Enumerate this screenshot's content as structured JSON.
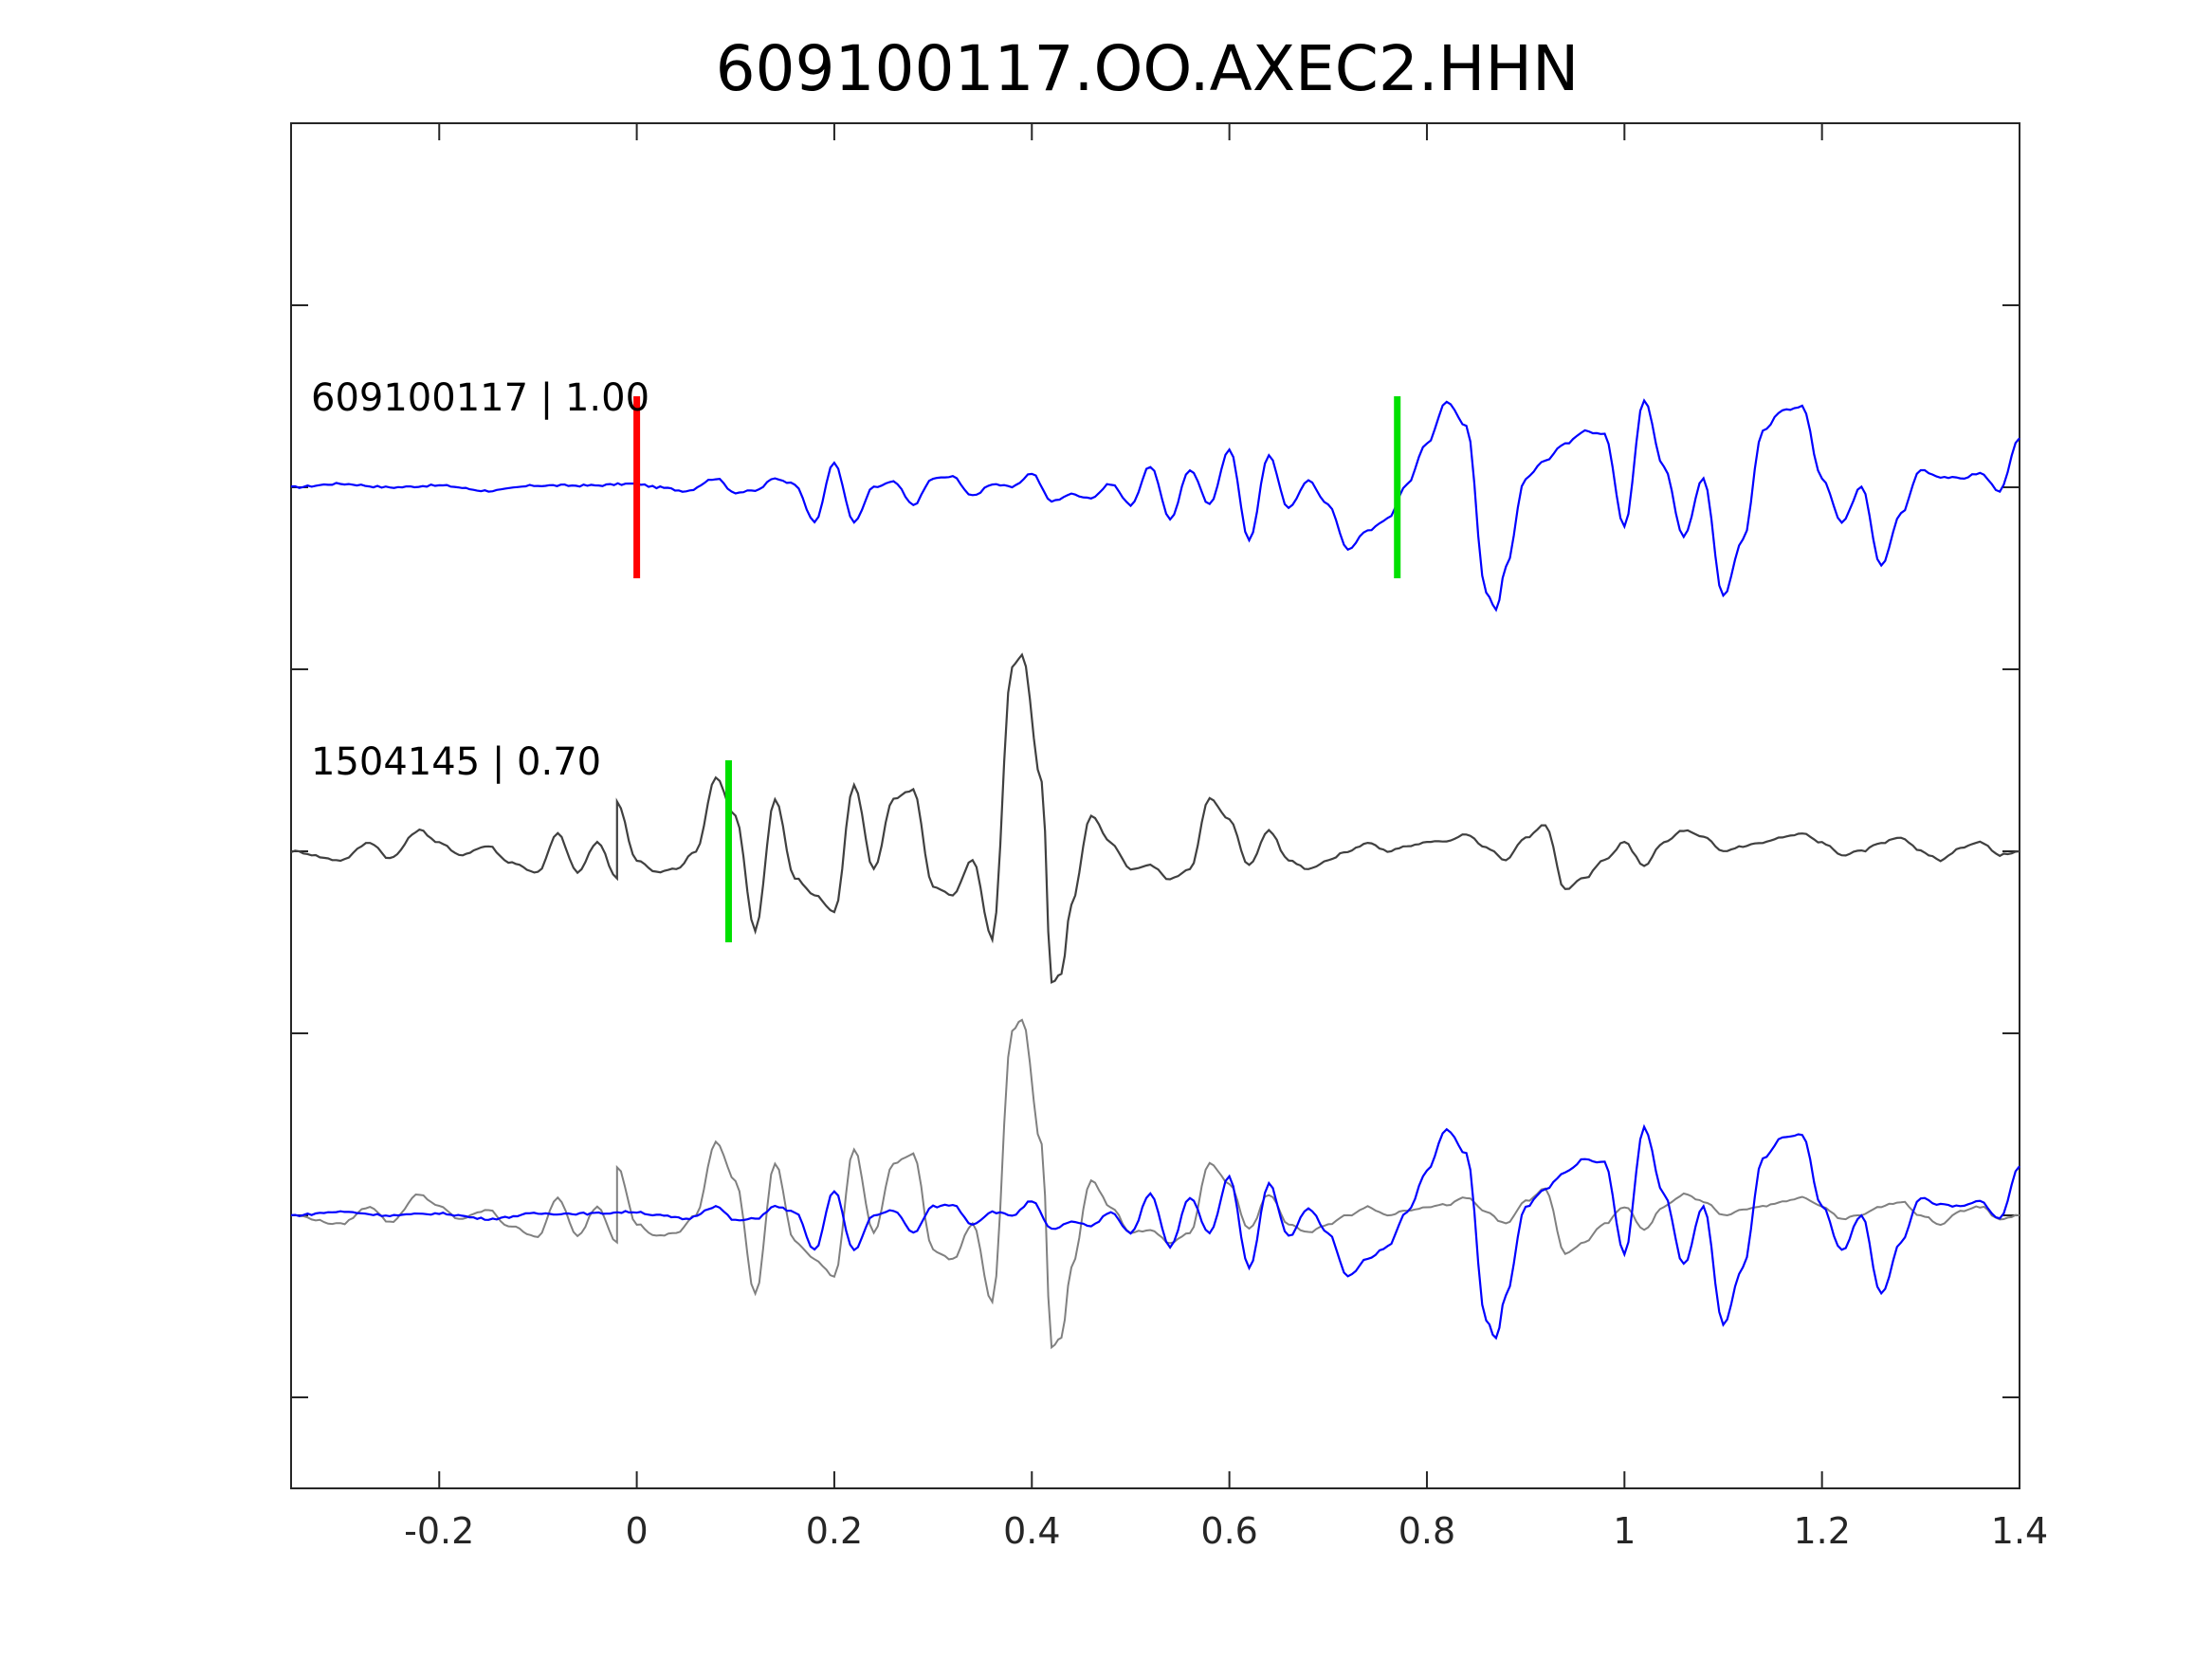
{
  "chart_data": {
    "type": "line",
    "title": "609100117.OO.AXEC2.HHN",
    "xlabel": "",
    "ylabel": "",
    "xlim": [
      -0.35,
      1.4
    ],
    "x_ticks": [
      -0.2,
      0,
      0.2,
      0.4,
      0.6,
      0.8,
      1,
      1.2,
      1.4
    ],
    "x_tick_labels": [
      "-0.2",
      "0",
      "0.2",
      "0.4",
      "0.6",
      "0.8",
      "1",
      "1.2",
      "1.4"
    ],
    "grid": false,
    "legend": "none",
    "traces": [
      {
        "label": "609100117 | 1.00",
        "color": "#0000ff",
        "samples": [
          [
            -0.35,
            0.0
          ],
          [
            -0.3,
            0.02
          ],
          [
            -0.25,
            0.0
          ],
          [
            -0.2,
            0.01
          ],
          [
            -0.15,
            -0.02
          ],
          [
            -0.1,
            0.01
          ],
          [
            -0.05,
            0.01
          ],
          [
            0.0,
            0.02
          ],
          [
            0.02,
            0.0
          ],
          [
            0.05,
            -0.02
          ],
          [
            0.08,
            0.05
          ],
          [
            0.1,
            -0.03
          ],
          [
            0.12,
            -0.02
          ],
          [
            0.14,
            0.05
          ],
          [
            0.16,
            0.02
          ],
          [
            0.18,
            -0.2
          ],
          [
            0.2,
            0.14
          ],
          [
            0.22,
            -0.2
          ],
          [
            0.24,
            0.0
          ],
          [
            0.26,
            0.03
          ],
          [
            0.28,
            -0.1
          ],
          [
            0.3,
            0.05
          ],
          [
            0.32,
            0.06
          ],
          [
            0.34,
            -0.05
          ],
          [
            0.36,
            0.02
          ],
          [
            0.38,
            0.0
          ],
          [
            0.4,
            0.08
          ],
          [
            0.42,
            -0.08
          ],
          [
            0.44,
            -0.04
          ],
          [
            0.46,
            -0.06
          ],
          [
            0.48,
            0.02
          ],
          [
            0.5,
            -0.1
          ],
          [
            0.52,
            0.12
          ],
          [
            0.54,
            -0.18
          ],
          [
            0.56,
            0.1
          ],
          [
            0.58,
            -0.1
          ],
          [
            0.6,
            0.22
          ],
          [
            0.62,
            -0.3
          ],
          [
            0.64,
            0.18
          ],
          [
            0.66,
            -0.12
          ],
          [
            0.68,
            0.04
          ],
          [
            0.7,
            -0.1
          ],
          [
            0.72,
            -0.35
          ],
          [
            0.74,
            -0.25
          ],
          [
            0.76,
            -0.18
          ],
          [
            0.78,
            0.02
          ],
          [
            0.8,
            0.25
          ],
          [
            0.82,
            0.49
          ],
          [
            0.84,
            0.35
          ],
          [
            0.86,
            -0.6
          ],
          [
            0.87,
            -0.7
          ],
          [
            0.88,
            -0.45
          ],
          [
            0.9,
            0.05
          ],
          [
            0.92,
            0.15
          ],
          [
            0.94,
            0.25
          ],
          [
            0.96,
            0.32
          ],
          [
            0.98,
            0.3
          ],
          [
            1.0,
            -0.22
          ],
          [
            1.02,
            0.5
          ],
          [
            1.04,
            0.12
          ],
          [
            1.06,
            -0.28
          ],
          [
            1.08,
            0.05
          ],
          [
            1.1,
            -0.62
          ],
          [
            1.12,
            -0.3
          ],
          [
            1.14,
            0.32
          ],
          [
            1.16,
            0.44
          ],
          [
            1.18,
            0.46
          ],
          [
            1.2,
            0.05
          ],
          [
            1.22,
            -0.2
          ],
          [
            1.24,
            0.0
          ],
          [
            1.26,
            -0.45
          ],
          [
            1.28,
            -0.15
          ],
          [
            1.3,
            0.1
          ],
          [
            1.32,
            0.06
          ],
          [
            1.34,
            0.05
          ],
          [
            1.36,
            0.08
          ],
          [
            1.38,
            -0.02
          ],
          [
            1.4,
            0.28
          ]
        ]
      },
      {
        "label": "1504145 | 0.70",
        "color": "#404040",
        "samples": [
          [
            -0.35,
            0.0
          ],
          [
            -0.3,
            -0.05
          ],
          [
            -0.27,
            0.05
          ],
          [
            -0.25,
            -0.04
          ],
          [
            -0.22,
            0.12
          ],
          [
            -0.2,
            0.05
          ],
          [
            -0.18,
            -0.02
          ],
          [
            -0.15,
            0.03
          ],
          [
            -0.13,
            -0.06
          ],
          [
            -0.1,
            -0.12
          ],
          [
            -0.08,
            0.1
          ],
          [
            -0.06,
            -0.12
          ],
          [
            -0.04,
            0.05
          ],
          [
            -0.02,
            -0.15
          ],
          [
            -0.02,
            0.28
          ],
          [
            0.0,
            -0.05
          ],
          [
            0.02,
            -0.12
          ],
          [
            0.04,
            -0.1
          ],
          [
            0.06,
            0.0
          ],
          [
            0.08,
            0.42
          ],
          [
            0.1,
            0.2
          ],
          [
            0.12,
            -0.45
          ],
          [
            0.14,
            0.3
          ],
          [
            0.16,
            -0.15
          ],
          [
            0.18,
            -0.25
          ],
          [
            0.2,
            -0.35
          ],
          [
            0.22,
            0.38
          ],
          [
            0.24,
            -0.1
          ],
          [
            0.26,
            0.3
          ],
          [
            0.28,
            0.35
          ],
          [
            0.3,
            -0.2
          ],
          [
            0.32,
            -0.25
          ],
          [
            0.34,
            -0.05
          ],
          [
            0.36,
            -0.5
          ],
          [
            0.38,
            1.05
          ],
          [
            0.39,
            1.12
          ],
          [
            0.41,
            0.4
          ],
          [
            0.42,
            -0.75
          ],
          [
            0.43,
            -0.7
          ],
          [
            0.44,
            -0.3
          ],
          [
            0.46,
            0.2
          ],
          [
            0.48,
            0.05
          ],
          [
            0.5,
            -0.1
          ],
          [
            0.52,
            -0.08
          ],
          [
            0.54,
            -0.16
          ],
          [
            0.56,
            -0.1
          ],
          [
            0.58,
            0.3
          ],
          [
            0.6,
            0.18
          ],
          [
            0.62,
            -0.08
          ],
          [
            0.64,
            0.12
          ],
          [
            0.66,
            -0.05
          ],
          [
            0.68,
            -0.1
          ],
          [
            0.7,
            -0.05
          ],
          [
            0.72,
            0.0
          ],
          [
            0.74,
            0.05
          ],
          [
            0.76,
            0.0
          ],
          [
            0.78,
            0.03
          ],
          [
            0.8,
            0.05
          ],
          [
            0.82,
            0.06
          ],
          [
            0.84,
            0.1
          ],
          [
            0.86,
            0.02
          ],
          [
            0.88,
            -0.05
          ],
          [
            0.9,
            0.08
          ],
          [
            0.92,
            0.15
          ],
          [
            0.94,
            -0.22
          ],
          [
            0.96,
            -0.15
          ],
          [
            0.98,
            -0.05
          ],
          [
            1.0,
            0.05
          ],
          [
            1.02,
            -0.08
          ],
          [
            1.04,
            0.05
          ],
          [
            1.06,
            0.12
          ],
          [
            1.08,
            0.08
          ],
          [
            1.1,
            0.0
          ],
          [
            1.12,
            0.03
          ],
          [
            1.14,
            0.05
          ],
          [
            1.16,
            0.08
          ],
          [
            1.18,
            0.1
          ],
          [
            1.2,
            0.05
          ],
          [
            1.22,
            -0.02
          ],
          [
            1.24,
            0.0
          ],
          [
            1.26,
            0.05
          ],
          [
            1.28,
            0.08
          ],
          [
            1.3,
            0.0
          ],
          [
            1.32,
            -0.05
          ],
          [
            1.34,
            0.02
          ],
          [
            1.36,
            0.05
          ],
          [
            1.38,
            -0.02
          ],
          [
            1.4,
            0.0
          ]
        ]
      },
      {
        "label": "",
        "color": "#808080",
        "overlay_of": "1504145 | 0.70"
      },
      {
        "label": "",
        "color": "#0000ff",
        "overlay_of": "609100117 | 1.00"
      }
    ],
    "picks": [
      {
        "trace": 0,
        "x": 0.0,
        "color": "#ff0000"
      },
      {
        "trace": 0,
        "x": 0.77,
        "color": "#00e000"
      },
      {
        "trace": 1,
        "x": 0.093,
        "color": "#00e000"
      }
    ]
  }
}
